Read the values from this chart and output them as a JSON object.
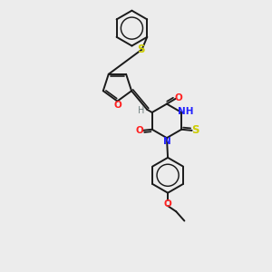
{
  "bg_color": "#ececec",
  "bond_color": "#1a1a1a",
  "N_color": "#2020ff",
  "O_color": "#ff2020",
  "S_color": "#cccc00",
  "H_color": "#708080",
  "lw": 1.4,
  "fs": 7.5,
  "xlim": [
    0,
    10
  ],
  "ylim": [
    0,
    13
  ]
}
